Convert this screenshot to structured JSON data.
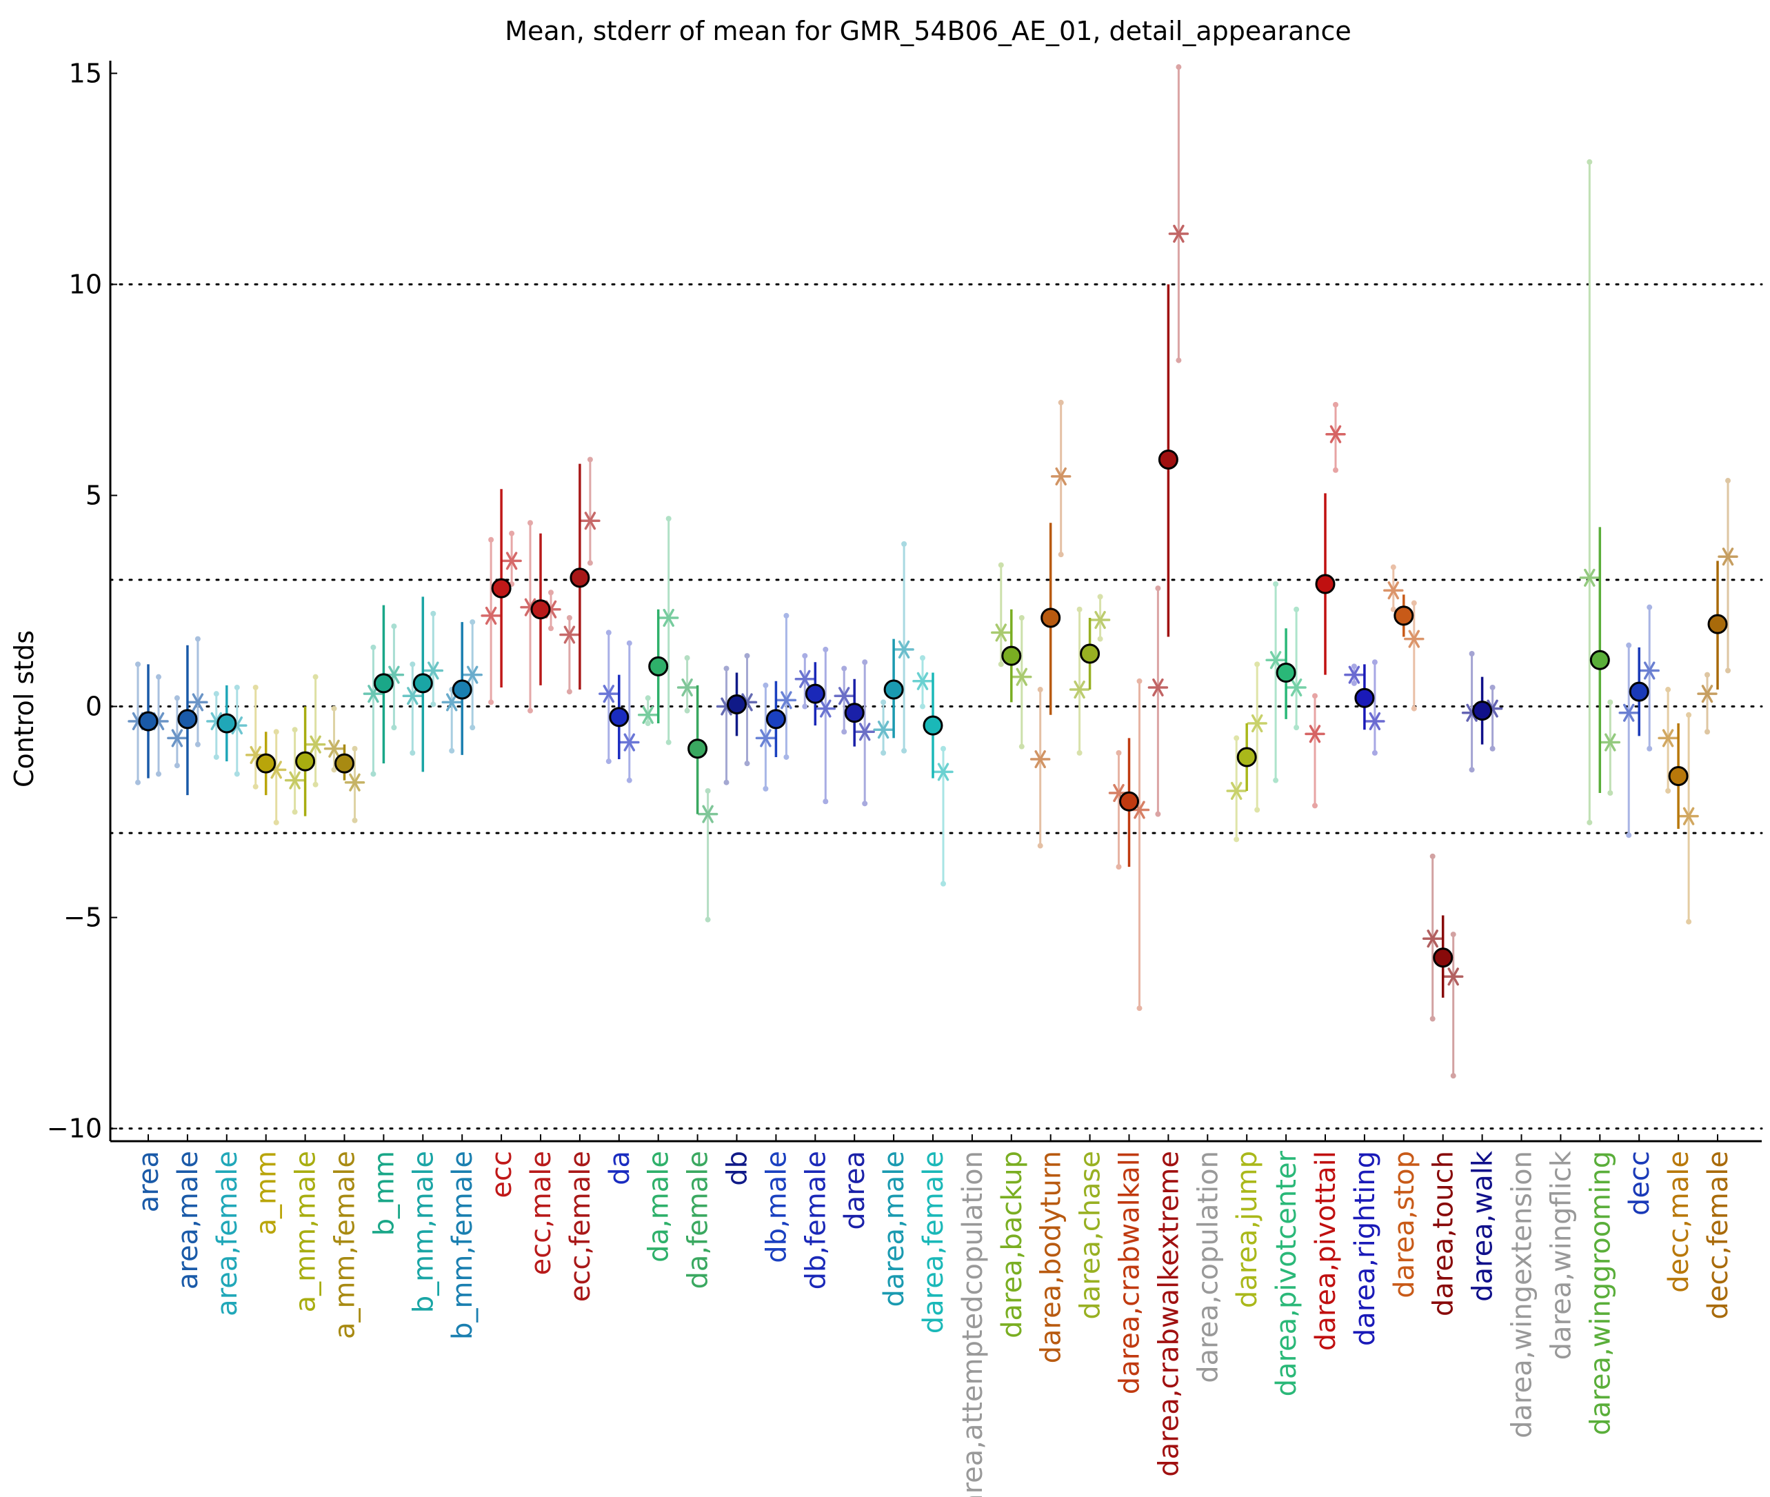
{
  "chart_data": {
    "type": "scatter",
    "title": "Mean, stderr of mean for GMR_54B06_AE_01, detail_appearance",
    "ylabel": "Control stds",
    "xlabel": "",
    "ylim": [
      -10.3,
      15.3
    ],
    "yticks": [
      15,
      10,
      5,
      0,
      -5,
      -10
    ],
    "ytick_labels": [
      "15",
      "10",
      "5",
      "0",
      "−5",
      "−10"
    ],
    "reference_lines": [
      10,
      3,
      0,
      -3,
      -10
    ],
    "grid": false,
    "legend": "none",
    "categories": [
      {
        "label": "area",
        "color": "#1a5aa8",
        "mean": -0.35,
        "lo": -1.7,
        "hi": 1.0,
        "male": -0.35,
        "female": -0.35,
        "mlo": -1.8,
        "mhi": 1.0,
        "flo": -1.6,
        "fhi": 0.7
      },
      {
        "label": "area,male",
        "color": "#1a5aa8",
        "mean": -0.3,
        "lo": -2.1,
        "hi": 1.45,
        "male": -0.75,
        "female": 0.1,
        "mlo": -1.4,
        "mhi": 0.2,
        "flo": -0.9,
        "fhi": 1.6
      },
      {
        "label": "area,female",
        "color": "#20a7b8",
        "mean": -0.4,
        "lo": -1.3,
        "hi": 0.5,
        "male": -0.35,
        "female": -0.45,
        "mlo": -1.2,
        "mhi": 0.3,
        "flo": -1.6,
        "fhi": 0.45
      },
      {
        "label": "a_mm",
        "color": "#b9a50a",
        "mean": -1.35,
        "lo": -2.1,
        "hi": -0.6,
        "male": -1.15,
        "female": -1.5,
        "mlo": -1.9,
        "mhi": 0.45,
        "flo": -2.75,
        "fhi": -0.6
      },
      {
        "label": "a_mm,male",
        "color": "#a8ad10",
        "mean": -1.3,
        "lo": -2.6,
        "hi": 0.0,
        "male": -1.75,
        "female": -0.9,
        "mlo": -2.5,
        "mhi": -0.55,
        "flo": -1.85,
        "fhi": 0.7
      },
      {
        "label": "a_mm,female",
        "color": "#a88a12",
        "mean": -1.35,
        "lo": -1.75,
        "hi": -0.9,
        "male": -1.0,
        "female": -1.8,
        "mlo": -1.5,
        "mhi": -0.05,
        "flo": -2.7,
        "fhi": -1.0
      },
      {
        "label": "b_mm",
        "color": "#1aa788",
        "mean": 0.55,
        "lo": -1.35,
        "hi": 2.4,
        "male": 0.3,
        "female": 0.75,
        "mlo": -1.6,
        "mhi": 1.4,
        "flo": -0.5,
        "fhi": 1.9
      },
      {
        "label": "b_mm,male",
        "color": "#1aa5a5",
        "mean": 0.55,
        "lo": -1.55,
        "hi": 2.6,
        "male": 0.25,
        "female": 0.85,
        "mlo": -1.1,
        "mhi": 1.0,
        "flo": 0.05,
        "fhi": 2.2
      },
      {
        "label": "b_mm,female",
        "color": "#1a7fb0",
        "mean": 0.4,
        "lo": -1.15,
        "hi": 2.0,
        "male": 0.1,
        "female": 0.75,
        "mlo": -1.05,
        "mhi": 0.4,
        "flo": -0.5,
        "fhi": 2.0
      },
      {
        "label": "ecc",
        "color": "#c01818",
        "mean": 2.8,
        "lo": 0.45,
        "hi": 5.15,
        "male": 2.15,
        "female": 3.45,
        "mlo": 0.1,
        "mhi": 3.95,
        "flo": 2.9,
        "fhi": 4.1
      },
      {
        "label": "ecc,male",
        "color": "#b81a1a",
        "mean": 2.3,
        "lo": 0.5,
        "hi": 4.1,
        "male": 2.35,
        "female": 2.3,
        "mlo": -0.1,
        "mhi": 4.35,
        "flo": 1.85,
        "fhi": 2.7
      },
      {
        "label": "ecc,female",
        "color": "#a81818",
        "mean": 3.05,
        "lo": 0.4,
        "hi": 5.75,
        "male": 1.7,
        "female": 4.4,
        "mlo": 0.35,
        "mhi": 2.1,
        "flo": 3.4,
        "fhi": 5.85
      },
      {
        "label": "da",
        "color": "#1a2cc0",
        "mean": -0.25,
        "lo": -1.25,
        "hi": 0.75,
        "male": 0.3,
        "female": -0.85,
        "mlo": -1.3,
        "mhi": 1.75,
        "flo": -1.75,
        "fhi": 1.5
      },
      {
        "label": "da,male",
        "color": "#2eb06a",
        "mean": 0.95,
        "lo": -0.4,
        "hi": 2.3,
        "male": -0.2,
        "female": 2.1,
        "mlo": -0.4,
        "mhi": 0.2,
        "flo": -0.85,
        "fhi": 4.45
      },
      {
        "label": "da,female",
        "color": "#3aa860",
        "mean": -1.0,
        "lo": -2.55,
        "hi": 0.5,
        "male": 0.45,
        "female": -2.55,
        "mlo": -0.1,
        "mhi": 1.15,
        "flo": -5.05,
        "fhi": -2.0
      },
      {
        "label": "db",
        "color": "#101a88",
        "mean": 0.05,
        "lo": -0.7,
        "hi": 0.8,
        "male": 0.0,
        "female": 0.1,
        "mlo": -1.8,
        "mhi": 0.9,
        "flo": -1.35,
        "fhi": 1.2
      },
      {
        "label": "db,male",
        "color": "#1a40c0",
        "mean": -0.3,
        "lo": -1.2,
        "hi": 0.6,
        "male": -0.75,
        "female": 0.15,
        "mlo": -1.95,
        "mhi": 0.5,
        "flo": -1.2,
        "fhi": 2.15
      },
      {
        "label": "db,female",
        "color": "#1a28b8",
        "mean": 0.3,
        "lo": -0.45,
        "hi": 1.05,
        "male": 0.65,
        "female": -0.05,
        "mlo": 0.0,
        "mhi": 1.2,
        "flo": -2.25,
        "fhi": 1.35
      },
      {
        "label": "darea",
        "color": "#1a20a8",
        "mean": -0.15,
        "lo": -0.95,
        "hi": 0.65,
        "male": 0.25,
        "female": -0.6,
        "mlo": -0.6,
        "mhi": 0.9,
        "flo": -2.3,
        "fhi": 1.05
      },
      {
        "label": "darea,male",
        "color": "#1a9ab0",
        "mean": 0.4,
        "lo": -0.75,
        "hi": 1.6,
        "male": -0.55,
        "female": 1.35,
        "mlo": -1.1,
        "mhi": 0.1,
        "flo": -1.05,
        "fhi": 3.85
      },
      {
        "label": "darea,female",
        "color": "#1ab8b8",
        "mean": -0.45,
        "lo": -1.7,
        "hi": 0.8,
        "male": 0.6,
        "female": -1.55,
        "mlo": 0.0,
        "mhi": 1.15,
        "flo": -4.2,
        "fhi": -1.0
      },
      {
        "label": "darea,attemptedcopulation",
        "color": "#999999",
        "mean": null
      },
      {
        "label": "darea,backup",
        "color": "#7aae22",
        "mean": 1.2,
        "lo": 0.1,
        "hi": 2.3,
        "male": 1.75,
        "female": 0.7,
        "mlo": 1.0,
        "mhi": 3.35,
        "flo": -0.95,
        "fhi": 2.1
      },
      {
        "label": "darea,bodyturn",
        "color": "#b85a10",
        "mean": 2.1,
        "lo": -0.2,
        "hi": 4.35,
        "male": -1.25,
        "female": 5.45,
        "mlo": -3.3,
        "mhi": 0.4,
        "flo": 3.6,
        "fhi": 7.2
      },
      {
        "label": "darea,chase",
        "color": "#98b022",
        "mean": 1.25,
        "lo": 0.4,
        "hi": 2.1,
        "male": 0.4,
        "female": 2.05,
        "mlo": -1.1,
        "mhi": 2.3,
        "flo": 1.6,
        "fhi": 2.6
      },
      {
        "label": "darea,crabwalkall",
        "color": "#c03a10",
        "mean": -2.25,
        "lo": -3.8,
        "hi": -0.75,
        "male": -2.05,
        "female": -2.45,
        "mlo": -3.8,
        "mhi": -1.1,
        "flo": -7.15,
        "fhi": 0.6
      },
      {
        "label": "darea,crabwalkextreme",
        "color": "#a01010",
        "mean": 5.85,
        "lo": 1.65,
        "hi": 10.0,
        "male": 0.45,
        "female": 11.2,
        "mlo": -2.55,
        "mhi": 2.8,
        "flo": 8.2,
        "fhi": 15.15
      },
      {
        "label": "darea,copulation",
        "color": "#999999",
        "mean": null
      },
      {
        "label": "darea,jump",
        "color": "#aab81a",
        "mean": -1.2,
        "lo": -2.0,
        "hi": -0.4,
        "male": -2.0,
        "female": -0.4,
        "mlo": -3.15,
        "mhi": -0.75,
        "flo": -2.45,
        "fhi": 1.0
      },
      {
        "label": "darea,pivotcenter",
        "color": "#2ab878",
        "mean": 0.8,
        "lo": -0.3,
        "hi": 1.85,
        "male": 1.1,
        "female": 0.45,
        "mlo": -1.75,
        "mhi": 2.9,
        "flo": -0.5,
        "fhi": 2.3
      },
      {
        "label": "darea,pivottail",
        "color": "#c01010",
        "mean": 2.9,
        "lo": 0.75,
        "hi": 5.05,
        "male": -0.65,
        "female": 6.45,
        "mlo": -2.35,
        "mhi": 0.25,
        "flo": 5.6,
        "fhi": 7.15
      },
      {
        "label": "darea,righting",
        "color": "#1a1ab8",
        "mean": 0.2,
        "lo": -0.55,
        "hi": 1.0,
        "male": 0.75,
        "female": -0.35,
        "mlo": 0.55,
        "mhi": 0.95,
        "flo": -1.1,
        "fhi": 1.05
      },
      {
        "label": "darea,stop",
        "color": "#c85a18",
        "mean": 2.15,
        "lo": 1.65,
        "hi": 2.65,
        "male": 2.75,
        "female": 1.6,
        "mlo": 2.3,
        "mhi": 3.3,
        "flo": -0.05,
        "fhi": 2.45
      },
      {
        "label": "darea,touch",
        "color": "#880a0a",
        "mean": -5.95,
        "lo": -6.9,
        "hi": -4.95,
        "male": -5.5,
        "female": -6.4,
        "mlo": -7.4,
        "mhi": -3.55,
        "flo": -8.75,
        "fhi": -5.4
      },
      {
        "label": "darea,walk",
        "color": "#10108a",
        "mean": -0.1,
        "lo": -0.9,
        "hi": 0.7,
        "male": -0.15,
        "female": -0.05,
        "mlo": -1.5,
        "mhi": 1.25,
        "flo": -1.0,
        "fhi": 0.45
      },
      {
        "label": "darea,wingextension",
        "color": "#999999",
        "mean": null
      },
      {
        "label": "darea,wingflick",
        "color": "#999999",
        "mean": null
      },
      {
        "label": "darea,winggrooming",
        "color": "#5aae3a",
        "mean": 1.1,
        "lo": -2.05,
        "hi": 4.25,
        "male": 3.05,
        "female": -0.85,
        "mlo": -2.75,
        "mhi": 12.9,
        "flo": -2.05,
        "fhi": 0.1
      },
      {
        "label": "decc",
        "color": "#1a3ab8",
        "mean": 0.35,
        "lo": -0.7,
        "hi": 1.4,
        "male": -0.15,
        "female": 0.85,
        "mlo": -3.05,
        "mhi": 1.45,
        "flo": -1.0,
        "fhi": 2.35
      },
      {
        "label": "decc,male",
        "color": "#b8780a",
        "mean": -1.65,
        "lo": -2.9,
        "hi": -0.4,
        "male": -0.75,
        "female": -2.6,
        "mlo": -2.0,
        "mhi": 0.4,
        "flo": -5.1,
        "fhi": -0.2
      },
      {
        "label": "decc,female",
        "color": "#a86a0a",
        "mean": 1.95,
        "lo": 0.4,
        "hi": 3.45,
        "male": 0.3,
        "female": 3.55,
        "mlo": -0.6,
        "mhi": 0.75,
        "flo": 0.85,
        "fhi": 5.35
      }
    ]
  }
}
